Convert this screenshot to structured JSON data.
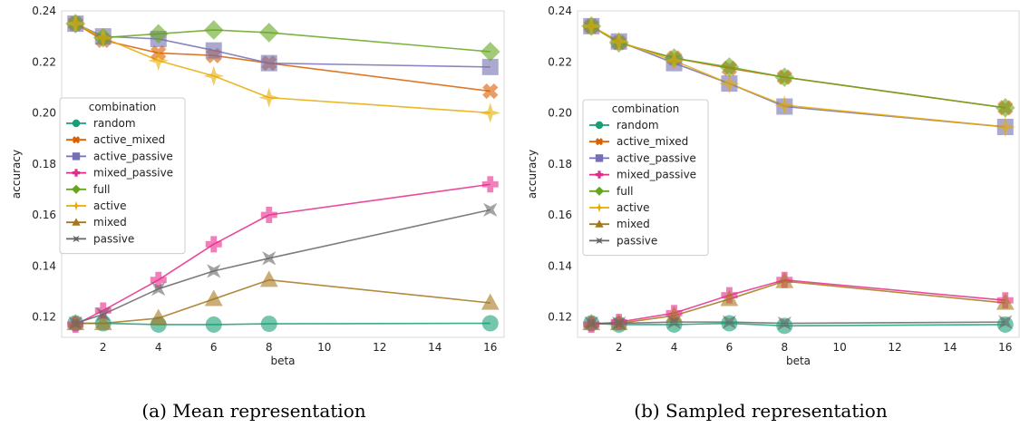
{
  "colors": {
    "random": "#1b9e77",
    "active_mixed": "#d95f02",
    "active_passive": "#7570b3",
    "mixed_passive": "#e7298a",
    "full": "#66a61e",
    "active": "#e6ab02",
    "mixed": "#a6761d",
    "passive": "#666666"
  },
  "chart_data": [
    {
      "type": "line",
      "caption": "(a) Mean representation",
      "xlabel": "beta",
      "ylabel": "accuracy",
      "xlim": [
        0.5,
        16.5
      ],
      "ylim": [
        0.112,
        0.24
      ],
      "xticks": [
        2,
        4,
        6,
        8,
        10,
        12,
        14,
        16
      ],
      "yticks": [
        0.12,
        0.14,
        0.16,
        0.18,
        0.2,
        0.22,
        0.24
      ],
      "ytick_labels": [
        "0.12",
        "0.14",
        "0.16",
        "0.18",
        "0.20",
        "0.22",
        "0.24"
      ],
      "grid": false,
      "legend": {
        "title": "combination",
        "placement": "center-left"
      },
      "x": [
        1,
        2,
        4,
        6,
        8,
        16
      ],
      "series": [
        {
          "name": "random",
          "marker": "circle",
          "values": [
            0.1175,
            0.1175,
            0.117,
            0.117,
            0.1173,
            0.1175
          ]
        },
        {
          "name": "active_mixed",
          "marker": "x",
          "values": [
            0.235,
            0.2285,
            0.2235,
            0.2225,
            0.2195,
            0.2085
          ]
        },
        {
          "name": "active_passive",
          "marker": "square",
          "values": [
            0.235,
            0.23,
            0.229,
            0.2245,
            0.2195,
            0.218
          ]
        },
        {
          "name": "mixed_passive",
          "marker": "plus",
          "values": [
            0.117,
            0.1225,
            0.1345,
            0.1485,
            0.16,
            0.172
          ]
        },
        {
          "name": "full",
          "marker": "diamond",
          "values": [
            0.235,
            0.2295,
            0.231,
            0.2325,
            0.2315,
            0.224
          ]
        },
        {
          "name": "active",
          "marker": "star",
          "values": [
            0.235,
            0.2295,
            0.2205,
            0.2145,
            0.206,
            0.2
          ]
        },
        {
          "name": "mixed",
          "marker": "triangle",
          "values": [
            0.1175,
            0.1175,
            0.1195,
            0.127,
            0.1345,
            0.1255
          ]
        },
        {
          "name": "passive",
          "marker": "xstar",
          "values": [
            0.1175,
            0.121,
            0.131,
            0.138,
            0.143,
            0.162
          ]
        }
      ]
    },
    {
      "type": "line",
      "caption": "(b) Sampled representation",
      "xlabel": "beta",
      "ylabel": "accuracy",
      "xlim": [
        0.5,
        16.5
      ],
      "ylim": [
        0.112,
        0.24
      ],
      "xticks": [
        2,
        4,
        6,
        8,
        10,
        12,
        14,
        16
      ],
      "yticks": [
        0.12,
        0.14,
        0.16,
        0.18,
        0.2,
        0.22,
        0.24
      ],
      "ytick_labels": [
        "0.12",
        "0.14",
        "0.16",
        "0.18",
        "0.20",
        "0.22",
        "0.24"
      ],
      "grid": false,
      "legend": {
        "title": "combination",
        "placement": "center-left"
      },
      "x": [
        1,
        2,
        4,
        6,
        8,
        16
      ],
      "series": [
        {
          "name": "random",
          "marker": "circle",
          "values": [
            0.1175,
            0.117,
            0.117,
            0.1175,
            0.1165,
            0.117
          ]
        },
        {
          "name": "active_mixed",
          "marker": "x",
          "values": [
            0.234,
            0.2275,
            0.2215,
            0.2175,
            0.214,
            0.202
          ]
        },
        {
          "name": "active_passive",
          "marker": "square",
          "values": [
            0.234,
            0.228,
            0.2195,
            0.2115,
            0.2025,
            0.1945
          ]
        },
        {
          "name": "mixed_passive",
          "marker": "plus",
          "values": [
            0.117,
            0.118,
            0.1215,
            0.1285,
            0.1345,
            0.1265
          ]
        },
        {
          "name": "full",
          "marker": "diamond",
          "values": [
            0.234,
            0.2275,
            0.2215,
            0.218,
            0.214,
            0.202
          ]
        },
        {
          "name": "active",
          "marker": "star",
          "values": [
            0.234,
            0.228,
            0.2205,
            0.2115,
            0.203,
            0.1945
          ]
        },
        {
          "name": "mixed",
          "marker": "triangle",
          "values": [
            0.1175,
            0.1175,
            0.1205,
            0.127,
            0.134,
            0.1255
          ]
        },
        {
          "name": "passive",
          "marker": "xstar",
          "values": [
            0.1175,
            0.1175,
            0.118,
            0.118,
            0.1175,
            0.118
          ]
        }
      ]
    }
  ]
}
